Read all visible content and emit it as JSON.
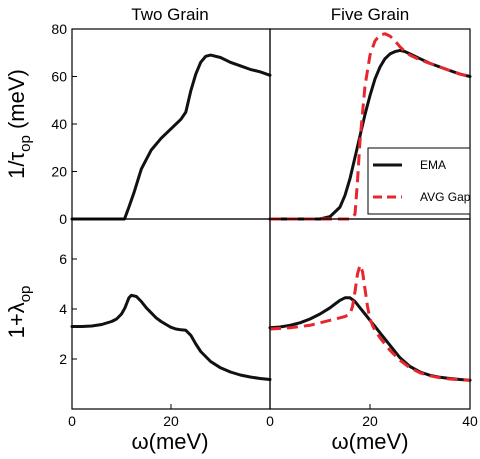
{
  "figure": {
    "ylabel_top": "1/τ_op (meV)",
    "ylabel_bottom": "1+λ_op",
    "xlabel_left": "ω(meV)",
    "xlabel_right": "ω(meV)"
  },
  "chart_data": [
    {
      "type": "line",
      "title": "Two Grain",
      "panel": "top-left",
      "xlim": [
        0,
        40
      ],
      "ylim": [
        0,
        80
      ],
      "y_ticks": [
        0,
        20,
        40,
        60,
        80
      ],
      "series": [
        {
          "color": "#111111",
          "dash": "solid",
          "x": [
            0,
            5,
            10,
            10.6,
            11.5,
            12.5,
            14,
            16,
            18,
            20,
            22,
            23,
            24,
            25,
            26,
            27,
            28,
            30,
            32,
            34,
            36,
            38,
            40
          ],
          "y": [
            0,
            0,
            0,
            0,
            5,
            11,
            21,
            29,
            34,
            38,
            42,
            45,
            54,
            61,
            66,
            68.5,
            69,
            68,
            66,
            64.5,
            63,
            62,
            60.5
          ]
        }
      ]
    },
    {
      "type": "line",
      "title": "Five Grain",
      "panel": "top-right",
      "xlim": [
        0,
        40
      ],
      "ylim": [
        0,
        80
      ],
      "series": [
        {
          "name": "EMA",
          "color": "#111111",
          "dash": "solid",
          "x": [
            0,
            10,
            12,
            14,
            15,
            16,
            17,
            18,
            19,
            20,
            21,
            22,
            23,
            24,
            25,
            26,
            27,
            28,
            30,
            32,
            34,
            36,
            38,
            40
          ],
          "y": [
            0,
            0,
            1,
            5,
            10,
            17,
            26,
            35,
            44,
            52,
            59,
            64,
            67.5,
            69.5,
            70.5,
            71,
            70.5,
            69.5,
            67.5,
            65.5,
            64,
            62.5,
            61,
            60
          ]
        },
        {
          "name": "AVG Gap",
          "color": "#e8262e",
          "dash": "dashed",
          "x": [
            0,
            10,
            15,
            16,
            17,
            17.5,
            18,
            19,
            20,
            21,
            22,
            23,
            24,
            25,
            26,
            27,
            28,
            30,
            32,
            34,
            36,
            38,
            40
          ],
          "y": [
            0,
            0,
            0,
            0,
            2,
            16,
            33,
            56,
            69,
            75,
            77.5,
            78,
            77,
            75,
            72.5,
            70.5,
            69,
            67,
            65.5,
            64,
            62.5,
            61,
            60
          ]
        }
      ],
      "legend": "right"
    },
    {
      "type": "line",
      "panel": "bottom-left",
      "xlim": [
        0,
        40
      ],
      "ylim": [
        0,
        7.6
      ],
      "x_ticks": [
        0,
        20,
        0
      ],
      "y_ticks": [
        2,
        4,
        6
      ],
      "series": [
        {
          "color": "#111111",
          "dash": "solid",
          "x": [
            0,
            2,
            4,
            6,
            8,
            9,
            10,
            10.7,
            11.5,
            12,
            13,
            14,
            15,
            16,
            17,
            18,
            19,
            20,
            21,
            22,
            23,
            24,
            25,
            26,
            28,
            30,
            32,
            34,
            36,
            38,
            40
          ],
          "y": [
            3.3,
            3.3,
            3.32,
            3.38,
            3.5,
            3.6,
            3.8,
            4.05,
            4.45,
            4.55,
            4.5,
            4.3,
            4.05,
            3.85,
            3.65,
            3.5,
            3.38,
            3.27,
            3.2,
            3.17,
            3.15,
            2.95,
            2.6,
            2.3,
            1.9,
            1.65,
            1.48,
            1.36,
            1.28,
            1.22,
            1.18
          ]
        }
      ]
    },
    {
      "type": "line",
      "panel": "bottom-right",
      "xlim": [
        0,
        40
      ],
      "ylim": [
        0,
        7.6
      ],
      "x_ticks": [
        20,
        40
      ],
      "series": [
        {
          "name": "EMA",
          "color": "#111111",
          "dash": "solid",
          "x": [
            0,
            2,
            4,
            6,
            8,
            10,
            12,
            13,
            14,
            15,
            16,
            17,
            18,
            19,
            20,
            21,
            22,
            24,
            26,
            28,
            30,
            32,
            34,
            36,
            38,
            40
          ],
          "y": [
            3.25,
            3.28,
            3.35,
            3.45,
            3.6,
            3.8,
            4.05,
            4.2,
            4.35,
            4.45,
            4.45,
            4.3,
            4.05,
            3.8,
            3.55,
            3.3,
            3.05,
            2.55,
            2.05,
            1.7,
            1.48,
            1.35,
            1.27,
            1.22,
            1.18,
            1.15
          ]
        },
        {
          "name": "AVG Gap",
          "color": "#e8262e",
          "dash": "dashed",
          "x": [
            0,
            4,
            8,
            12,
            14,
            15,
            16,
            16.5,
            17,
            17.5,
            18,
            18.5,
            19,
            19.5,
            20,
            20.5,
            21,
            22,
            24,
            26,
            28,
            30,
            32,
            34,
            36,
            38,
            40
          ],
          "y": [
            3.2,
            3.25,
            3.35,
            3.55,
            3.65,
            3.7,
            3.8,
            4.1,
            4.7,
            5.4,
            5.75,
            5.5,
            4.8,
            4.1,
            3.6,
            3.35,
            3.15,
            2.85,
            2.35,
            1.95,
            1.65,
            1.45,
            1.33,
            1.25,
            1.2,
            1.17,
            1.15
          ]
        }
      ]
    }
  ]
}
